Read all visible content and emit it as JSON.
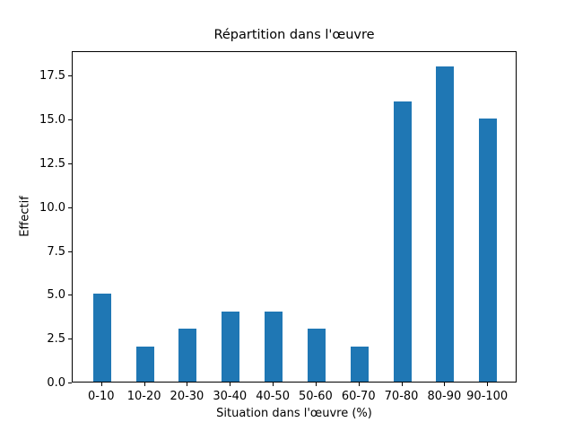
{
  "chart_data": {
    "type": "bar",
    "title": "Répartition dans l'œuvre",
    "xlabel": "Situation dans l'œuvre (%)",
    "ylabel": "Effectif",
    "categories": [
      "0-10",
      "10-20",
      "20-30",
      "30-40",
      "40-50",
      "50-60",
      "60-70",
      "70-80",
      "80-90",
      "90-100"
    ],
    "values": [
      5,
      2,
      3,
      4,
      4,
      3,
      2,
      16,
      18,
      15
    ],
    "ylim": [
      0,
      18.9
    ],
    "ytick_values": [
      0,
      2.5,
      5,
      7.5,
      10,
      12.5,
      15,
      17.5
    ],
    "ytick_labels": [
      "0.0",
      "2.5",
      "5.0",
      "7.5",
      "10.0",
      "12.5",
      "15.0",
      "17.5"
    ],
    "bar_color": "#1f77b4",
    "grid": false,
    "legend_position": "none"
  }
}
